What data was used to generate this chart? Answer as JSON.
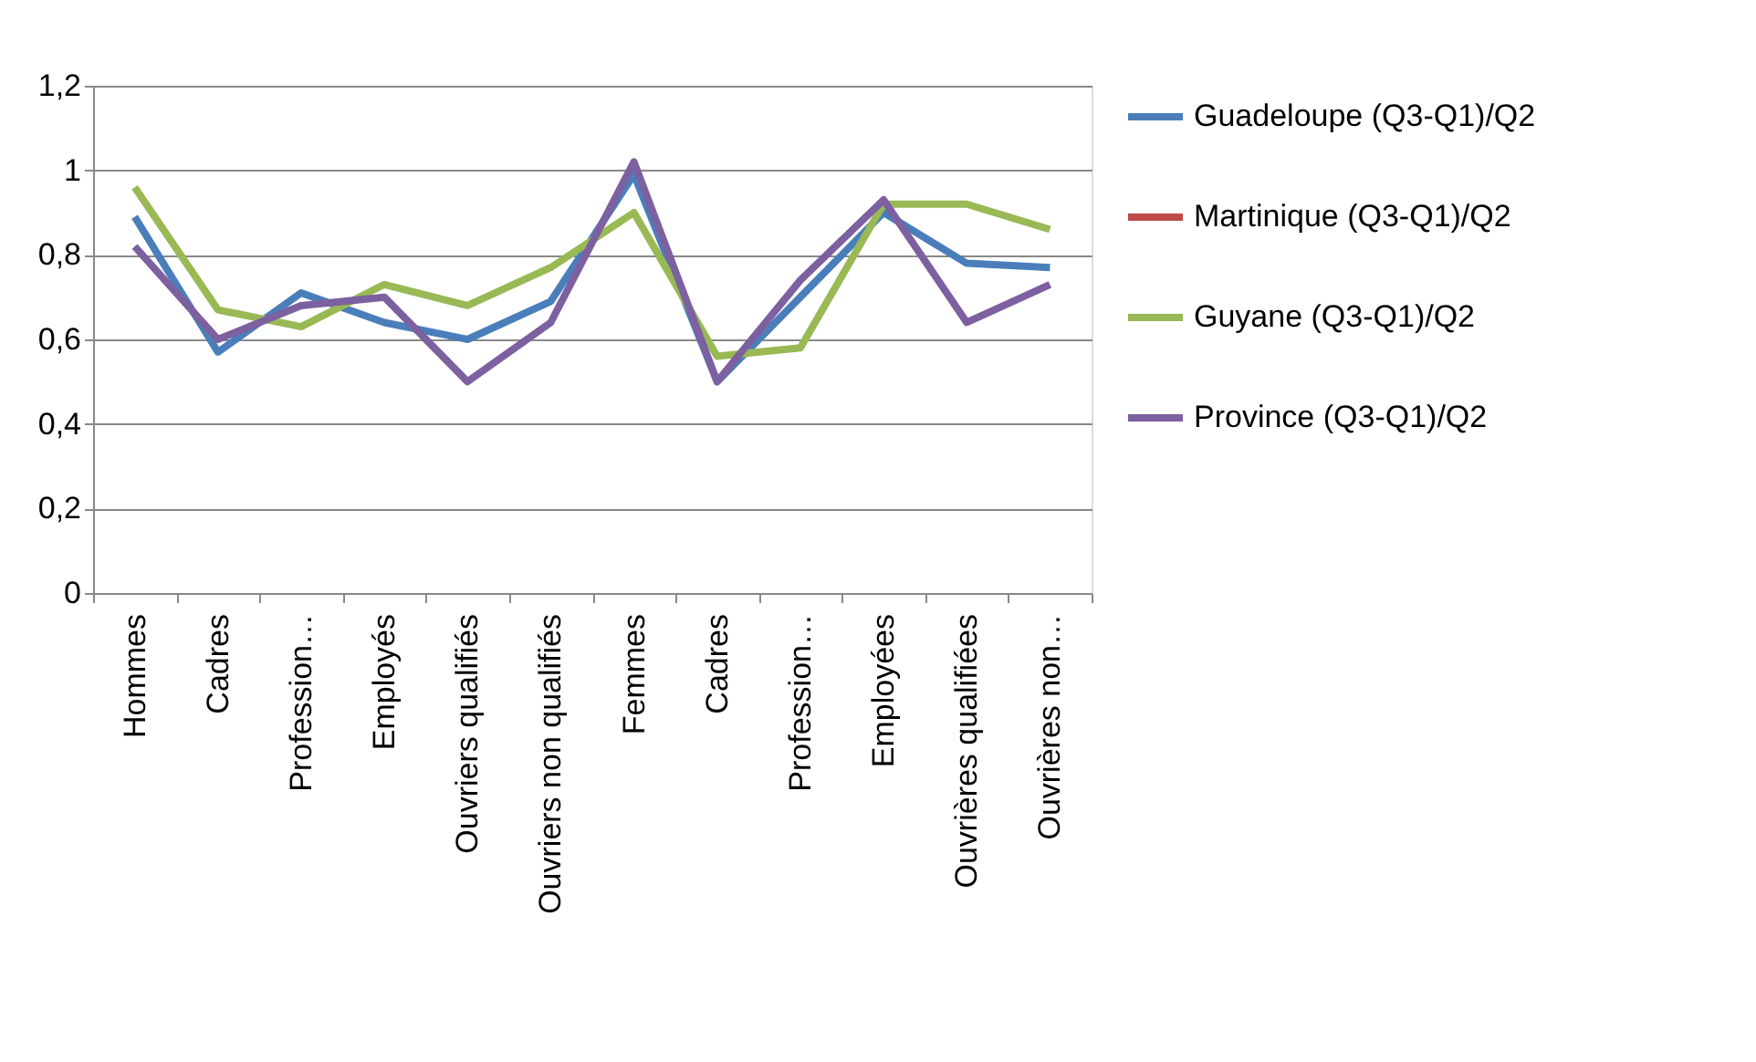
{
  "chart_data": {
    "type": "line",
    "categories": [
      "Hommes",
      "Cadres",
      "Profession…",
      "Employés",
      "Ouvriers qualifiés",
      "Ouvriers non qualifiés",
      "Femmes",
      "Cadres",
      "Profession…",
      "Employées",
      "Ouvrières qualifiées",
      "Ouvrières non…"
    ],
    "series": [
      {
        "name": "Guadeloupe (Q3-Q1)/Q2",
        "color": "#4a7ebb",
        "values": [
          0.89,
          0.57,
          0.71,
          0.64,
          0.6,
          0.69,
          0.99,
          0.5,
          0.7,
          0.9,
          0.78,
          0.77
        ]
      },
      {
        "name": "Martinique (Q3-Q1)/Q2",
        "color": "#be4b48",
        "values": [
          null,
          null,
          null,
          null,
          null,
          null,
          null,
          null,
          null,
          null,
          null,
          null
        ]
      },
      {
        "name": "Guyane (Q3-Q1)/Q2",
        "color": "#98b954",
        "values": [
          0.96,
          0.67,
          0.63,
          0.73,
          0.68,
          0.77,
          0.9,
          0.56,
          0.58,
          0.92,
          0.92,
          0.86
        ]
      },
      {
        "name": "Province (Q3-Q1)/Q2",
        "color": "#7d60a0",
        "values": [
          0.82,
          0.6,
          0.68,
          0.7,
          0.5,
          0.64,
          1.02,
          0.5,
          0.74,
          0.93,
          0.64,
          0.73
        ]
      }
    ],
    "ylim": [
      0,
      1.2
    ],
    "yticks": [
      0,
      {
        "value": 0.2,
        "label": "0,2"
      },
      {
        "value": 0.4,
        "label": "0,4"
      },
      {
        "value": 0.6,
        "label": "0,6"
      },
      {
        "value": 0.8,
        "label": "0,8"
      },
      1,
      {
        "value": 1.2,
        "label": "1,2"
      }
    ],
    "grid": "y",
    "legend": "right",
    "marker": "none",
    "line_style": "solid"
  }
}
